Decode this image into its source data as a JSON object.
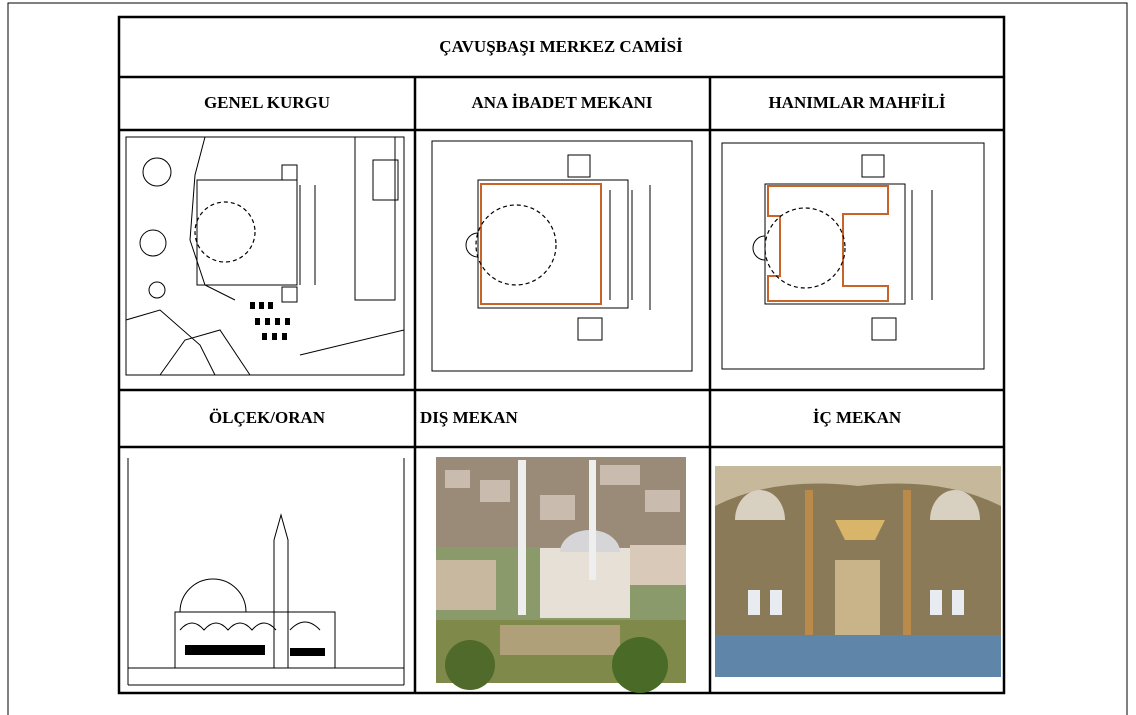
{
  "header": {
    "title": "ÇAVUŞBAŞI MERKEZ CAMİSİ"
  },
  "table": {
    "rows": [
      [
        "GENEL KURGU",
        "ANA İBADET MEKANI",
        "HANIMLAR MAHFİLİ"
      ],
      [
        "ÖLÇEK/ORAN",
        "DIŞ MEKAN",
        "İÇ MEKAN"
      ]
    ]
  }
}
